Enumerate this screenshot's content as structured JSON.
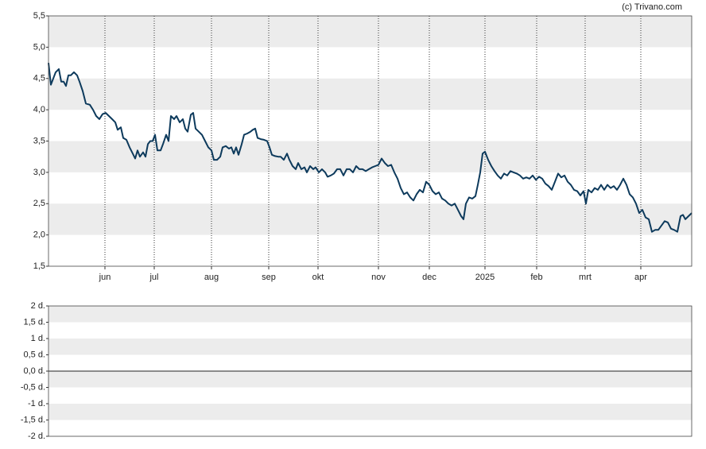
{
  "credit": "(c) Trivano.com",
  "chart_data": [
    {
      "type": "line",
      "xlim": [
        0,
        809
      ],
      "xticks": [
        {
          "value": 71,
          "label": "jun"
        },
        {
          "value": 133,
          "label": "jul"
        },
        {
          "value": 205,
          "label": "aug"
        },
        {
          "value": 277,
          "label": "sep"
        },
        {
          "value": 339,
          "label": "okt"
        },
        {
          "value": 415,
          "label": "nov"
        },
        {
          "value": 479,
          "label": "dec"
        },
        {
          "value": 549,
          "label": "2025"
        },
        {
          "value": 614,
          "label": "feb"
        },
        {
          "value": 675,
          "label": "mrt"
        },
        {
          "value": 745,
          "label": "apr"
        }
      ],
      "ylim": [
        1.5,
        5.5
      ],
      "yticks": [
        {
          "value": 1.5,
          "label": "1,5"
        },
        {
          "value": 2,
          "label": "2,0"
        },
        {
          "value": 2.5,
          "label": "2,5"
        },
        {
          "value": 3,
          "label": "3,0"
        },
        {
          "value": 3.5,
          "label": "3,5"
        },
        {
          "value": 4,
          "label": "4,0"
        },
        {
          "value": 4.5,
          "label": "4,5"
        },
        {
          "value": 5,
          "label": "5,0"
        },
        {
          "value": 5.5,
          "label": "5,5"
        }
      ],
      "grid": true,
      "color": "#0d3a5c",
      "x": [
        0,
        3,
        6,
        9,
        13,
        16,
        19,
        22,
        25,
        28,
        32,
        36,
        39,
        43,
        47,
        52,
        56,
        60,
        64,
        68,
        72,
        76,
        80,
        84,
        87,
        91,
        94,
        98,
        102,
        106,
        109,
        112,
        115,
        119,
        122,
        125,
        128,
        131,
        134,
        137,
        141,
        144,
        148,
        151,
        154,
        158,
        161,
        165,
        169,
        172,
        175,
        179,
        182,
        185,
        189,
        193,
        197,
        201,
        205,
        208,
        212,
        216,
        219,
        223,
        227,
        230,
        233,
        236,
        239,
        243,
        246,
        250,
        254,
        257,
        260,
        263,
        267,
        271,
        275,
        278,
        281,
        285,
        289,
        292,
        296,
        300,
        303,
        307,
        311,
        314,
        318,
        322,
        325,
        329,
        333,
        336,
        340,
        344,
        348,
        351,
        355,
        359,
        363,
        367,
        371,
        375,
        379,
        383,
        387,
        391,
        395,
        399,
        403,
        407,
        411,
        415,
        419,
        423,
        427,
        431,
        435,
        439,
        443,
        447,
        451,
        455,
        459,
        463,
        467,
        471,
        475,
        479,
        483,
        487,
        491,
        495,
        499,
        503,
        507,
        511,
        515,
        519,
        522,
        525,
        529,
        533,
        537,
        540,
        543,
        546,
        549,
        553,
        557,
        561,
        565,
        569,
        573,
        577,
        581,
        585,
        589,
        593,
        597,
        601,
        605,
        609,
        613,
        617,
        621,
        625,
        629,
        633,
        637,
        641,
        645,
        649,
        653,
        657,
        661,
        665,
        669,
        673,
        676,
        679,
        683,
        687,
        691,
        695,
        699,
        703,
        707,
        711,
        715,
        719,
        723,
        727,
        731,
        735,
        739,
        743,
        747,
        751,
        755,
        759,
        763,
        767,
        771,
        775,
        779,
        783,
        787,
        791,
        795,
        798,
        801,
        805,
        809
      ],
      "values": [
        4.75,
        4.4,
        4.5,
        4.6,
        4.65,
        4.45,
        4.45,
        4.38,
        4.55,
        4.55,
        4.6,
        4.55,
        4.45,
        4.3,
        4.1,
        4.08,
        4.0,
        3.9,
        3.85,
        3.93,
        3.95,
        3.9,
        3.85,
        3.8,
        3.68,
        3.72,
        3.55,
        3.52,
        3.4,
        3.3,
        3.22,
        3.35,
        3.25,
        3.32,
        3.25,
        3.45,
        3.5,
        3.5,
        3.6,
        3.35,
        3.35,
        3.45,
        3.6,
        3.5,
        3.9,
        3.85,
        3.9,
        3.8,
        3.85,
        3.7,
        3.65,
        3.92,
        3.95,
        3.7,
        3.65,
        3.6,
        3.5,
        3.4,
        3.35,
        3.2,
        3.2,
        3.25,
        3.4,
        3.42,
        3.38,
        3.4,
        3.3,
        3.4,
        3.28,
        3.45,
        3.6,
        3.62,
        3.65,
        3.68,
        3.7,
        3.55,
        3.53,
        3.52,
        3.5,
        3.4,
        3.28,
        3.26,
        3.25,
        3.25,
        3.2,
        3.3,
        3.2,
        3.1,
        3.05,
        3.15,
        3.05,
        3.08,
        3.0,
        3.1,
        3.05,
        3.08,
        3.0,
        3.05,
        3.0,
        2.93,
        2.95,
        2.98,
        3.05,
        3.05,
        2.95,
        3.05,
        3.05,
        3.0,
        3.1,
        3.05,
        3.05,
        3.02,
        3.05,
        3.08,
        3.1,
        3.12,
        3.22,
        3.15,
        3.1,
        3.12,
        3.0,
        2.9,
        2.75,
        2.65,
        2.68,
        2.6,
        2.55,
        2.65,
        2.72,
        2.68,
        2.85,
        2.8,
        2.7,
        2.65,
        2.68,
        2.58,
        2.55,
        2.5,
        2.47,
        2.5,
        2.4,
        2.3,
        2.25,
        2.5,
        2.6,
        2.58,
        2.62,
        2.8,
        3.0,
        3.3,
        3.33,
        3.2,
        3.1,
        3.02,
        2.95,
        2.9,
        2.98,
        2.95,
        3.02,
        3.0,
        2.98,
        2.95,
        2.9,
        2.92,
        2.9,
        2.95,
        2.88,
        2.93,
        2.9,
        2.82,
        2.78,
        2.72,
        2.85,
        2.98,
        2.92,
        2.95,
        2.85,
        2.8,
        2.72,
        2.7,
        2.63,
        2.7,
        2.5,
        2.72,
        2.68,
        2.75,
        2.72,
        2.8,
        2.72,
        2.8,
        2.75,
        2.78,
        2.72,
        2.8,
        2.9,
        2.8,
        2.65,
        2.6,
        2.5,
        2.35,
        2.4,
        2.28,
        2.25,
        2.05,
        2.08,
        2.08,
        2.15,
        2.22,
        2.2,
        2.1,
        2.08,
        2.05,
        2.3,
        2.32,
        2.25,
        2.3,
        2.35
      ]
    },
    {
      "type": "bar",
      "ylim": [
        -2,
        2
      ],
      "yticks": [
        {
          "value": -2,
          "label": "-2 d."
        },
        {
          "value": -1.5,
          "label": "-1,5 d."
        },
        {
          "value": -1,
          "label": "-1 d."
        },
        {
          "value": -0.5,
          "label": "-0,5 d."
        },
        {
          "value": 0,
          "label": "0,0 d."
        },
        {
          "value": 0.5,
          "label": "0,5 d."
        },
        {
          "value": 1,
          "label": "1 d."
        },
        {
          "value": 1.5,
          "label": "1,5 d."
        },
        {
          "value": 2,
          "label": "2 d."
        }
      ],
      "grid": true
    }
  ]
}
